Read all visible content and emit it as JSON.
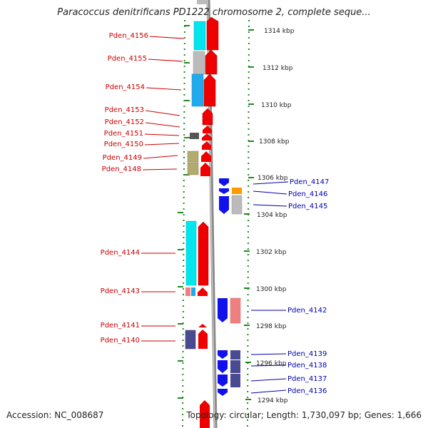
{
  "title": "Paracoccus denitrificans PD1222 chromosome 2, complete seque...",
  "accession": "Accession: NC_008687",
  "summary": "Topology: circular; Length: 1,730,097 bp; Genes: 1,666",
  "colors": {
    "label_left": "#cc0000",
    "label_right": "#0000aa",
    "ruler": "#228822",
    "backbone": "#888888",
    "forward_cds": "#ee0000",
    "reverse_cds": "#1111ee",
    "cyan": "#00e5ee",
    "lightblue": "#22aaee",
    "gray": "#bbbbbb",
    "olive": "#b3aa70",
    "orange": "#ff9900",
    "pink": "#f08080",
    "navy": "#4a4a90",
    "darkgray": "#555555"
  },
  "kbp_ticks": [
    "1314 kbp",
    "1312 kbp",
    "1310 kbp",
    "1308 kbp",
    "1306 kbp",
    "1304 kbp",
    "1302 kbp",
    "1300 kbp",
    "1298 kbp",
    "1296 kbp",
    "1294 kbp"
  ],
  "left_labels": [
    "Pden_4156",
    "Pden_4155",
    "Pden_4154",
    "Pden_4153",
    "Pden_4152",
    "Pden_4151",
    "Pden_4150",
    "Pden_4149",
    "Pden_4148",
    "Pden_4144",
    "Pden_4143",
    "Pden_4141",
    "Pden_4140"
  ],
  "right_labels": [
    "Pden_4147",
    "Pden_4146",
    "Pden_4145",
    "Pden_4142",
    "Pden_4139",
    "Pden_4138",
    "Pden_4137",
    "Pden_4136"
  ]
}
